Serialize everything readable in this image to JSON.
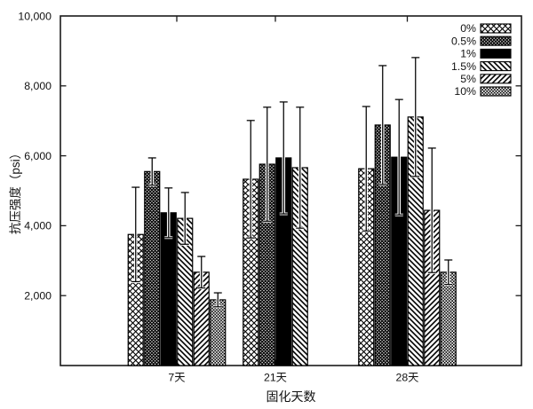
{
  "chart_data": {
    "type": "bar",
    "title": "",
    "xlabel": "固化天数",
    "ylabel": "抗压强度（psi）",
    "categories": [
      "7天",
      "21天",
      "28天"
    ],
    "series": [
      {
        "name": "0%",
        "pattern": "diamond-crosshatch",
        "values": [
          3750,
          5330,
          5630
        ],
        "errors": [
          1350,
          1680,
          1780
        ]
      },
      {
        "name": "0.5%",
        "pattern": "dense-crosshatch",
        "values": [
          5550,
          5760,
          6880
        ],
        "errors": [
          390,
          1630,
          1700
        ]
      },
      {
        "name": "1%",
        "pattern": "solid-black",
        "values": [
          4370,
          5940,
          5960
        ],
        "errors": [
          710,
          1600,
          1650
        ]
      },
      {
        "name": "1.5%",
        "pattern": "diagonal-down",
        "values": [
          4210,
          5660,
          7110
        ],
        "errors": [
          740,
          1730,
          1700
        ]
      },
      {
        "name": "5%",
        "pattern": "diagonal-up",
        "values": [
          2670,
          null,
          4440
        ],
        "errors": [
          450,
          null,
          1780
        ]
      },
      {
        "name": "10%",
        "pattern": "fine-checker",
        "values": [
          1880,
          null,
          2670
        ],
        "errors": [
          200,
          null,
          350
        ]
      }
    ],
    "ylim": [
      0,
      10000
    ],
    "yticks": [
      2000,
      4000,
      6000,
      8000,
      10000
    ],
    "ytick_labels": [
      "2,000",
      "4,000",
      "6,000",
      "8,000",
      "10,000"
    ],
    "legend_position": "top-right-inside",
    "grid": false,
    "error_bars": true,
    "colors": {
      "foreground": "#111111",
      "axis": "#1a1a1a",
      "background": "#ffffff",
      "bar_fill": "#000000"
    }
  }
}
